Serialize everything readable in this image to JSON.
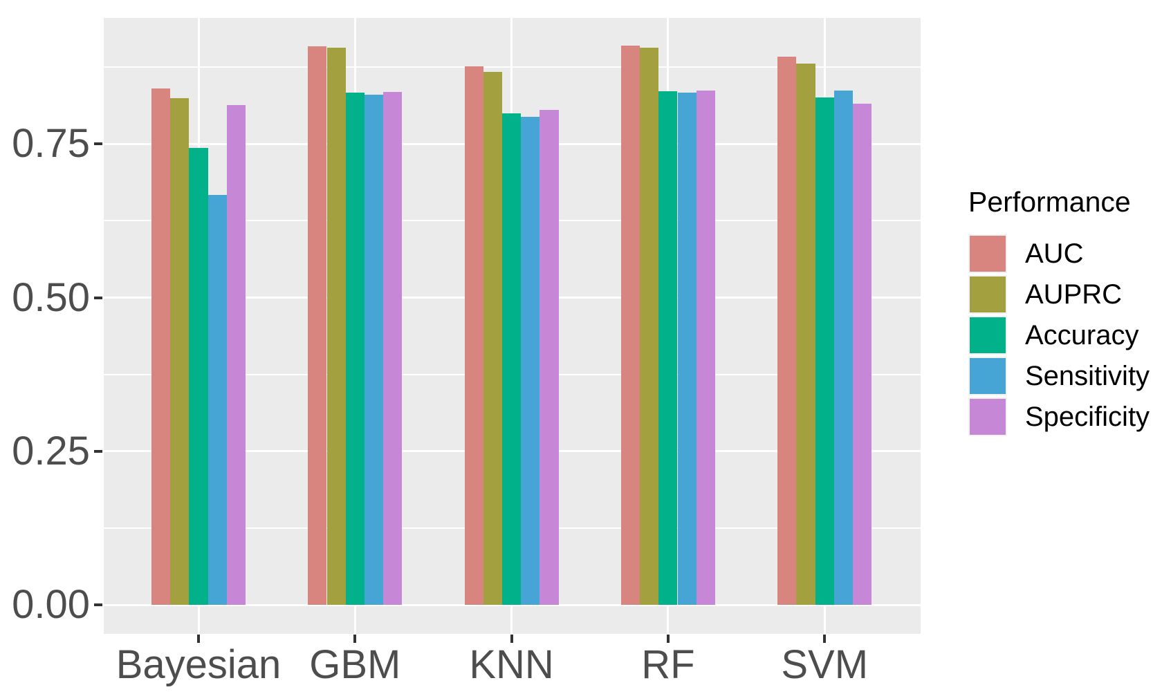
{
  "chart_data": {
    "type": "bar",
    "title": "",
    "xlabel": "",
    "ylabel": "",
    "categories": [
      "Bayesian",
      "GBM",
      "KNN",
      "RF",
      "SVM"
    ],
    "series": [
      {
        "name": "AUC",
        "color": "#D88580",
        "values": [
          0.84,
          0.909,
          0.876,
          0.91,
          0.892
        ]
      },
      {
        "name": "AUPRC",
        "color": "#A2A03F",
        "values": [
          0.825,
          0.907,
          0.867,
          0.907,
          0.881
        ]
      },
      {
        "name": "Accuracy",
        "color": "#00B189",
        "values": [
          0.743,
          0.834,
          0.8,
          0.836,
          0.826
        ]
      },
      {
        "name": "Sensitivity",
        "color": "#47A5D6",
        "values": [
          0.667,
          0.83,
          0.794,
          0.834,
          0.837
        ]
      },
      {
        "name": "Specificity",
        "color": "#C687D6",
        "values": [
          0.813,
          0.835,
          0.805,
          0.837,
          0.816
        ]
      }
    ],
    "legend": {
      "title": "Performance",
      "position": "right",
      "items": [
        "AUC",
        "AUPRC",
        "Accuracy",
        "Sensitivity",
        "Specificity"
      ]
    },
    "y_axis": {
      "tick_labels": [
        "0.00",
        "0.25",
        "0.50",
        "0.75"
      ],
      "tick_values": [
        0,
        0.25,
        0.5,
        0.75
      ],
      "minor_tick_values": [
        0.125,
        0.375,
        0.625,
        0.875
      ],
      "range": [
        -0.046,
        0.956
      ]
    },
    "style": {
      "panel_background": "#EBEBEB",
      "grid_color": "#FFFFFF",
      "axis_text_color": "#4D4D4D",
      "tick_mark_color": "#333333",
      "grid": "major+minor"
    }
  }
}
